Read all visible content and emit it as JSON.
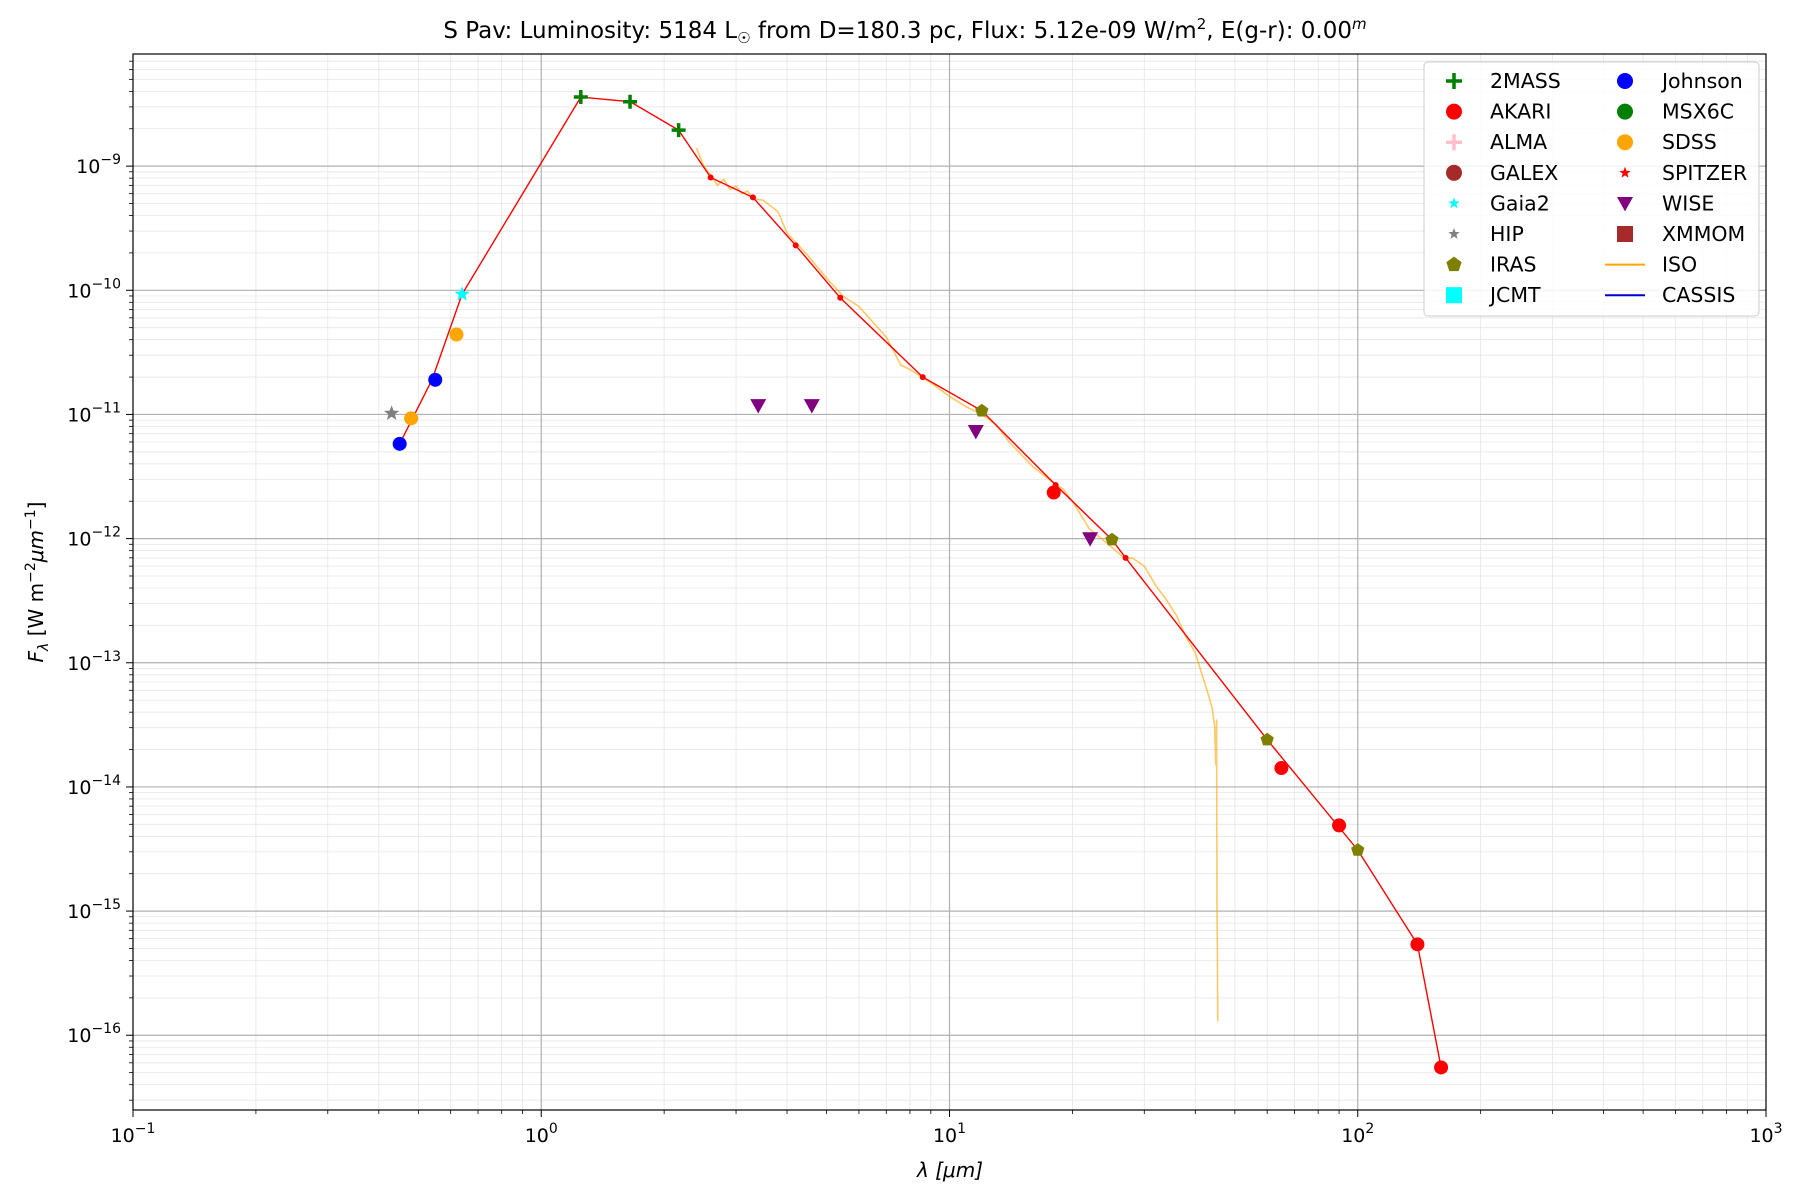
{
  "chart_data": {
    "type": "scatter",
    "title": {
      "star": "S Pav:",
      "luminosity_label": "Luminosity: 5184 L",
      "sun_symbol": "☉",
      "distance_text": " from D=180.3 pc, Flux: 5.12e-09 W/m",
      "flux_exponent": "2",
      "extinction_text": ", E(g-r): 0.00",
      "extinction_exponent": "m"
    },
    "xlabel": {
      "symbol": "λ",
      "unit": "[μm]"
    },
    "ylabel": {
      "symbol": "F",
      "subscript": "λ",
      "unit_text": "[W m",
      "unit_exp1": "−2",
      "unit_mid": "μm",
      "unit_exp2": "−1",
      "unit_end": "]"
    },
    "x_scale": "log",
    "y_scale": "log",
    "xlim": [
      0.1,
      1000
    ],
    "ylim": [
      2.5e-17,
      8e-09
    ],
    "grid": true,
    "legend_position": "top-right",
    "x_ticks": [
      {
        "value": 0.1,
        "base": "10",
        "exp": "−1"
      },
      {
        "value": 1,
        "base": "10",
        "exp": "0"
      },
      {
        "value": 10,
        "base": "10",
        "exp": "1"
      },
      {
        "value": 100,
        "base": "10",
        "exp": "2"
      },
      {
        "value": 1000,
        "base": "10",
        "exp": "3"
      }
    ],
    "y_ticks": [
      {
        "value": 1e-16,
        "base": "10",
        "exp": "−16"
      },
      {
        "value": 1e-15,
        "base": "10",
        "exp": "−15"
      },
      {
        "value": 1e-14,
        "base": "10",
        "exp": "−14"
      },
      {
        "value": 1e-13,
        "base": "10",
        "exp": "−13"
      },
      {
        "value": 1e-12,
        "base": "10",
        "exp": "−12"
      },
      {
        "value": 1e-11,
        "base": "10",
        "exp": "−11"
      },
      {
        "value": 1e-10,
        "base": "10",
        "exp": "−10"
      },
      {
        "value": 1e-09,
        "base": "10",
        "exp": "−9"
      }
    ],
    "legend": [
      {
        "name": "2MASS",
        "marker": "plus",
        "color": "#008000"
      },
      {
        "name": "AKARI",
        "marker": "circle",
        "color": "#ff0000"
      },
      {
        "name": "ALMA",
        "marker": "plus",
        "color": "#ffc0cb"
      },
      {
        "name": "GALEX",
        "marker": "circle",
        "color": "#a52a2a"
      },
      {
        "name": "Gaia2",
        "marker": "star",
        "color": "#00ffff"
      },
      {
        "name": "HIP",
        "marker": "star",
        "color": "#808080"
      },
      {
        "name": "IRAS",
        "marker": "pentagon",
        "color": "#808000"
      },
      {
        "name": "JCMT",
        "marker": "square",
        "color": "#00ffff"
      },
      {
        "name": "Johnson",
        "marker": "circle",
        "color": "#0000ff"
      },
      {
        "name": "MSX6C",
        "marker": "circle",
        "color": "#008000"
      },
      {
        "name": "SDSS",
        "marker": "circle",
        "color": "#ffa500"
      },
      {
        "name": "SPITZER",
        "marker": "star",
        "color": "#ff0000"
      },
      {
        "name": "WISE",
        "marker": "triangle-down",
        "color": "#800080"
      },
      {
        "name": "XMMOM",
        "marker": "square",
        "color": "#a52a2a"
      },
      {
        "name": "ISO",
        "marker": "line",
        "color": "#ffa500"
      },
      {
        "name": "CASSIS",
        "marker": "line",
        "color": "#0000cd"
      }
    ],
    "model_line": {
      "color": "#ff0000",
      "points": [
        [
          0.45,
          5.8e-12
        ],
        [
          0.54,
          1.9e-11
        ],
        [
          0.64,
          9.3e-11
        ],
        [
          1.25,
          3.6e-09
        ],
        [
          1.65,
          3.3e-09
        ],
        [
          2.17,
          1.95e-09
        ],
        [
          2.6,
          8.1e-10
        ],
        [
          3.3,
          5.6e-10
        ],
        [
          4.2,
          2.3e-10
        ],
        [
          5.4,
          8.7e-11
        ],
        [
          8.6,
          2e-11
        ],
        [
          12.0,
          1.07e-11
        ],
        [
          18.2,
          2.7e-12
        ],
        [
          25.0,
          9.8e-13
        ],
        [
          27.0,
          7e-13
        ],
        [
          60.0,
          2.4e-14
        ],
        [
          100.0,
          3.1e-15
        ],
        [
          140.0,
          5.4e-16
        ],
        [
          160.0,
          5.5e-17
        ]
      ]
    },
    "model_dots": [
      [
        2.6,
        8.1e-10
      ],
      [
        3.3,
        5.6e-10
      ],
      [
        4.2,
        2.3e-10
      ],
      [
        5.4,
        8.7e-11
      ],
      [
        8.6,
        2e-11
      ],
      [
        18.2,
        2.7e-12
      ],
      [
        27.0,
        7e-13
      ]
    ],
    "iso_spectrum": {
      "color": "#ffa500",
      "points": [
        [
          2.4,
          1.4e-09
        ],
        [
          2.5,
          1e-09
        ],
        [
          2.6,
          8.5e-10
        ],
        [
          2.7,
          7e-10
        ],
        [
          2.8,
          7.8e-10
        ],
        [
          2.9,
          6.5e-10
        ],
        [
          3.0,
          6.9e-10
        ],
        [
          3.1,
          6e-10
        ],
        [
          3.2,
          6.3e-10
        ],
        [
          3.3,
          5.5e-10
        ],
        [
          3.5,
          5.3e-10
        ],
        [
          3.8,
          4.3e-10
        ],
        [
          4.0,
          2.9e-10
        ],
        [
          4.5,
          1.9e-10
        ],
        [
          5.0,
          1.25e-10
        ],
        [
          5.5,
          8.9e-11
        ],
        [
          6.0,
          7.4e-11
        ],
        [
          7.0,
          4.2e-11
        ],
        [
          7.6,
          2.5e-11
        ],
        [
          8.0,
          2.3e-11
        ],
        [
          9.0,
          1.8e-11
        ],
        [
          10.0,
          1.4e-11
        ],
        [
          11.0,
          1.15e-11
        ],
        [
          12.0,
          1e-11
        ],
        [
          13.0,
          8.3e-12
        ],
        [
          14.0,
          6e-12
        ],
        [
          16.0,
          3.8e-12
        ],
        [
          18.0,
          2.8e-12
        ],
        [
          19.0,
          2.5e-12
        ],
        [
          20.0,
          2e-12
        ],
        [
          22.0,
          1.2e-12
        ],
        [
          24.0,
          9.5e-13
        ],
        [
          26.0,
          7.6e-13
        ],
        [
          27.0,
          6.8e-13
        ],
        [
          28.0,
          7e-13
        ],
        [
          30.0,
          6e-13
        ],
        [
          32.0,
          4.2e-13
        ],
        [
          34.0,
          3.2e-13
        ],
        [
          36.0,
          2.4e-13
        ],
        [
          38.0,
          1.6e-13
        ],
        [
          40.0,
          1.2e-13
        ],
        [
          42.0,
          7.2e-14
        ],
        [
          43.0,
          5.6e-14
        ],
        [
          44.0,
          4.3e-14
        ],
        [
          44.6,
          3.1e-14
        ],
        [
          44.9,
          1.5e-14
        ],
        [
          45.1,
          3.5e-14
        ],
        [
          45.2,
          1e-15
        ],
        [
          45.3,
          5e-16
        ],
        [
          45.4,
          1.3e-16
        ]
      ]
    },
    "points": {
      "2MASS": [
        [
          1.25,
          3.6e-09
        ],
        [
          1.65,
          3.3e-09
        ],
        [
          2.17,
          1.95e-09
        ]
      ],
      "AKARI": [
        [
          18.0,
          2.35e-12
        ],
        [
          65.0,
          1.42e-14
        ],
        [
          90.0,
          4.9e-15
        ],
        [
          140.0,
          5.4e-16
        ],
        [
          160.0,
          5.5e-17
        ]
      ],
      "Gaia2": [
        [
          0.64,
          9.3e-11
        ]
      ],
      "HIP": [
        [
          0.43,
          1.02e-11
        ]
      ],
      "IRAS": [
        [
          12.0,
          1.07e-11
        ],
        [
          25.0,
          9.8e-13
        ],
        [
          60.0,
          2.4e-14
        ],
        [
          100.0,
          3.1e-15
        ]
      ],
      "Johnson": [
        [
          0.45,
          5.8e-12
        ],
        [
          0.55,
          1.9e-11
        ]
      ],
      "SDSS": [
        [
          0.48,
          9.3e-12
        ],
        [
          0.62,
          4.4e-11
        ]
      ],
      "WISE": [
        [
          3.4,
          1.18e-11
        ],
        [
          4.6,
          1.18e-11
        ],
        [
          11.6,
          7.3e-12
        ],
        [
          22.1,
          1e-12
        ]
      ]
    }
  }
}
